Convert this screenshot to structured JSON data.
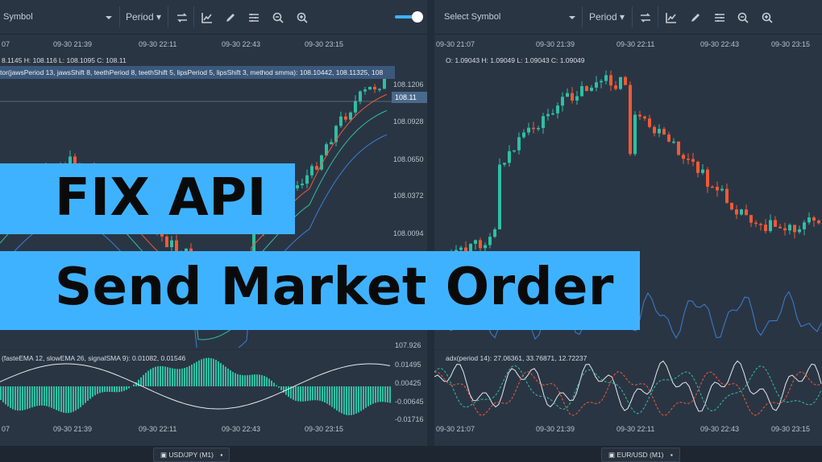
{
  "left": {
    "toolbar": {
      "symbol": "Symbol",
      "period": "Period"
    },
    "time_labels": [
      "07",
      "09-30 21:39",
      "09-30 22:11",
      "09-30 22:43",
      "09-30 23:15"
    ],
    "price_labels": [
      "108.1206",
      "108.11",
      "108.0928",
      "108.0650",
      "108.0372",
      "108.0094",
      "107.926"
    ],
    "ohlc": "8.1145 H: 108.116 L: 108.1095 C: 108.11",
    "alligator": "tor(jawsPeriod 13, jawsShift 8, teethPeriod 8, teethShift 5, lipsPeriod 5, lipsShift 3, method smma): 108.10442, 108.11325, 108",
    "macd": "(fasteEMA 12, slowEMA 26, signalSMA 9): 0.01082, 0.01546",
    "macd_labels": [
      "0.01495",
      "0.00425",
      "-0.00645",
      "-0.01716"
    ],
    "tab": "USD/JPY (M1)"
  },
  "right": {
    "toolbar": {
      "symbol": "Select Symbol",
      "period": "Period"
    },
    "time_labels": [
      "09-30 21:07",
      "09-30 21:39",
      "09-30 22:11",
      "09-30 22:43",
      "09-30 23:15"
    ],
    "ohlc": "O: 1.09043 H: 1.09049 L: 1.09043 C: 1.09049",
    "adx": "adx(period 14): 27.06361, 33.76871, 12.72237",
    "tab": "EUR/USD (M1)"
  },
  "banner": {
    "line1": "FIX API",
    "line2": "Send Market Order"
  },
  "colors": {
    "bull": "#2fbfa3",
    "bear": "#ef5a35",
    "accent": "#3fb2ff",
    "line_blue": "#3b7fd1"
  },
  "icons": [
    "swap-icon",
    "chart-line-icon",
    "pencil-icon",
    "settings-icon",
    "zoom-out-icon",
    "zoom-in-icon",
    "dropdown-icon"
  ]
}
